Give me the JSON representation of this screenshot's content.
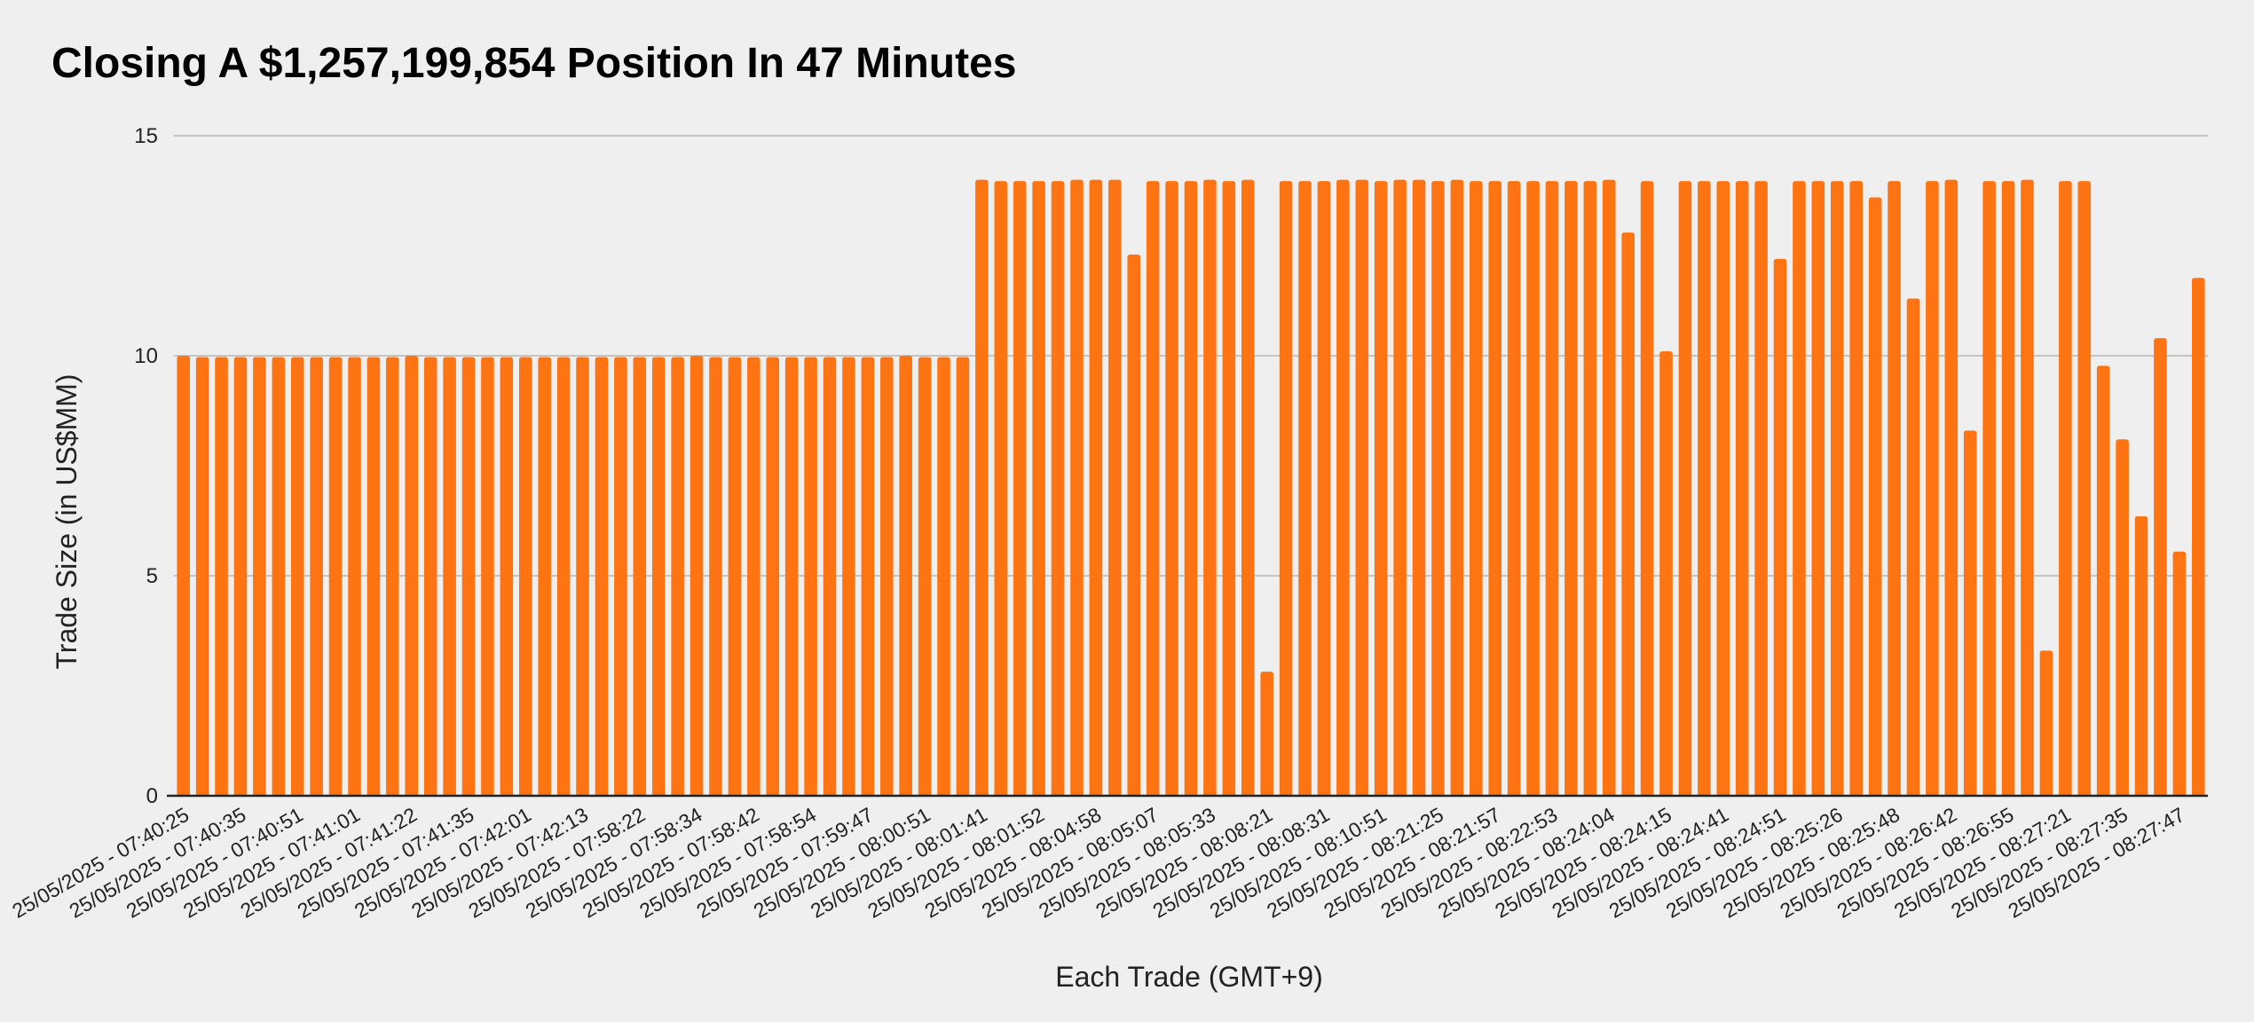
{
  "chart_data": {
    "type": "bar",
    "title": "Closing A $1,257,199,854 Position In 47 Minutes",
    "xlabel": "Each Trade (GMT+9)",
    "ylabel": "Trade Size (in US$MM)",
    "ylim": [
      0,
      15
    ],
    "yticks": [
      0,
      5,
      10,
      15
    ],
    "grid": true,
    "bar_color": "#ff7412",
    "background": "#efefef",
    "xtick_labels": [
      "25/05/2025 - 07:40:25",
      "25/05/2025 - 07:40:35",
      "25/05/2025 - 07:40:51",
      "25/05/2025 - 07:41:01",
      "25/05/2025 - 07:41:22",
      "25/05/2025 - 07:41:35",
      "25/05/2025 - 07:42:01",
      "25/05/2025 - 07:42:13",
      "25/05/2025 - 07:58:22",
      "25/05/2025 - 07:58:34",
      "25/05/2025 - 07:58:42",
      "25/05/2025 - 07:58:54",
      "25/05/2025 - 07:59:47",
      "25/05/2025 - 08:00:51",
      "25/05/2025 - 08:01:41",
      "25/05/2025 - 08:01:52",
      "25/05/2025 - 08:04:58",
      "25/05/2025 - 08:05:07",
      "25/05/2025 - 08:05:33",
      "25/05/2025 - 08:08:21",
      "25/05/2025 - 08:08:31",
      "25/05/2025 - 08:10:51",
      "25/05/2025 - 08:21:25",
      "25/05/2025 - 08:21:57",
      "25/05/2025 - 08:22:53",
      "25/05/2025 - 08:24:04",
      "25/05/2025 - 08:24:15",
      "25/05/2025 - 08:24:41",
      "25/05/2025 - 08:24:51",
      "25/05/2025 - 08:25:26",
      "25/05/2025 - 08:25:48",
      "25/05/2025 - 08:26:42",
      "25/05/2025 - 08:26:55",
      "25/05/2025 - 08:27:21",
      "25/05/2025 - 08:27:35",
      "25/05/2025 - 08:27:47"
    ],
    "values": [
      10.0,
      9.97,
      9.97,
      9.97,
      9.97,
      9.97,
      9.97,
      9.97,
      9.97,
      9.97,
      9.97,
      9.97,
      10.0,
      9.97,
      9.97,
      9.97,
      9.97,
      9.97,
      9.97,
      9.97,
      9.97,
      9.97,
      9.97,
      9.97,
      9.97,
      9.97,
      9.97,
      10.0,
      9.97,
      9.97,
      9.97,
      9.97,
      9.97,
      9.97,
      9.97,
      9.97,
      9.97,
      9.97,
      10.0,
      9.97,
      9.97,
      9.97,
      14.0,
      13.97,
      13.97,
      13.97,
      13.97,
      14.0,
      14.0,
      14.0,
      12.3,
      13.97,
      13.97,
      13.97,
      14.0,
      13.97,
      14.0,
      2.82,
      13.97,
      13.97,
      13.97,
      14.0,
      14.0,
      13.97,
      14.0,
      14.0,
      13.97,
      14.0,
      13.97,
      13.97,
      13.97,
      13.97,
      13.97,
      13.97,
      13.97,
      14.0,
      12.8,
      13.97,
      10.1,
      13.97,
      13.97,
      13.97,
      13.97,
      13.97,
      12.2,
      13.97,
      13.97,
      13.97,
      13.97,
      13.6,
      13.97,
      11.3,
      13.97,
      14.0,
      8.3,
      13.97,
      13.97,
      14.0,
      3.3,
      13.97,
      13.97,
      9.77,
      8.1,
      6.35,
      10.4,
      5.55,
      11.77
    ]
  }
}
